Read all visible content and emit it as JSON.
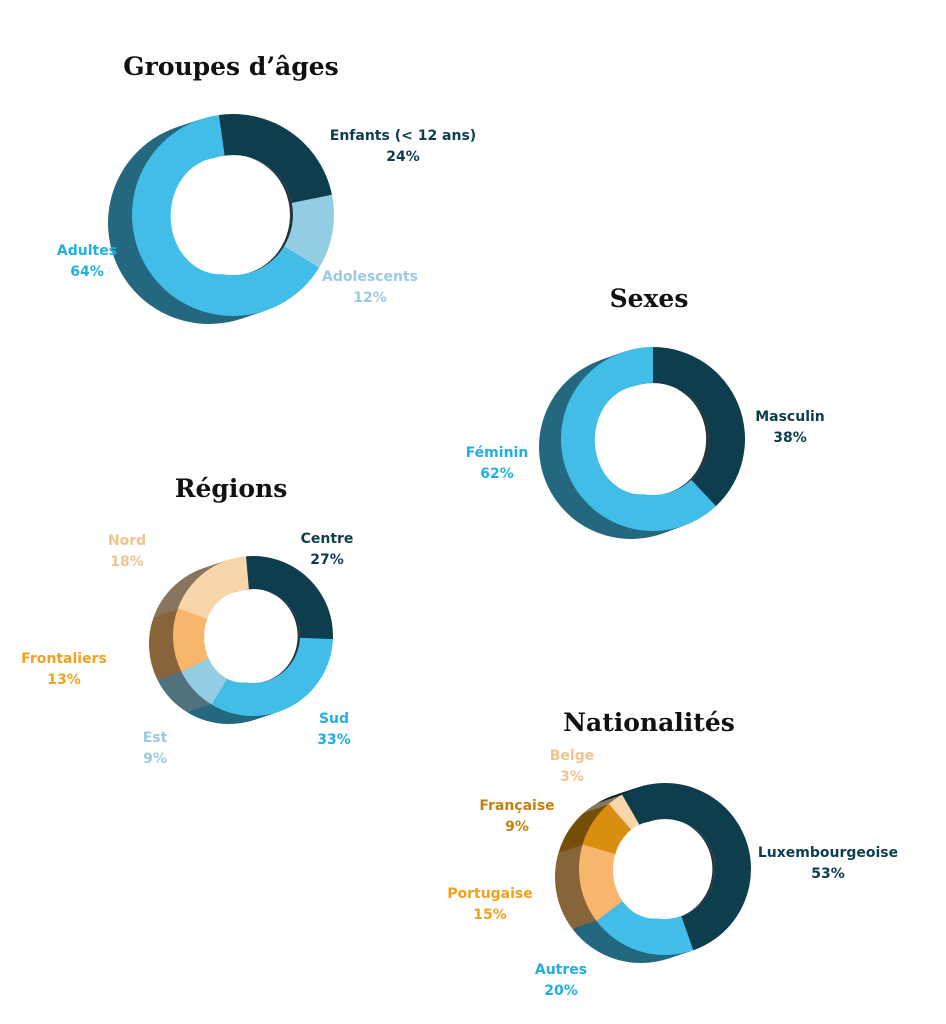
{
  "chart_data": [
    {
      "id": "ages",
      "type": "pie",
      "title": "Groupes d’âges",
      "slices": [
        {
          "label": "Enfants (< 12 ans)",
          "value": 24,
          "display": "24%",
          "color": "#0e3d4d",
          "label_color": "#0e3d4d"
        },
        {
          "label": "Adolescents",
          "value": 12,
          "display": "12%",
          "color": "#93cde4",
          "label_color": "#9ccbe0"
        },
        {
          "label": "Adultes",
          "value": 64,
          "display": "64%",
          "color": "#42bde8",
          "label_color": "#1fb0e0"
        }
      ]
    },
    {
      "id": "sexes",
      "type": "pie",
      "title": "Sexes",
      "slices": [
        {
          "label": "Masculin",
          "value": 38,
          "display": "38%",
          "color": "#0e3d4d",
          "label_color": "#0e3d4d"
        },
        {
          "label": "Féminin",
          "value": 62,
          "display": "62%",
          "color": "#42bde8",
          "label_color": "#1fb0e0"
        }
      ]
    },
    {
      "id": "regions",
      "type": "pie",
      "title": "Régions",
      "slices": [
        {
          "label": "Centre",
          "value": 27,
          "display": "27%",
          "color": "#0e3d4d",
          "label_color": "#0e3d4d"
        },
        {
          "label": "Sud",
          "value": 33,
          "display": "33%",
          "color": "#42bde8",
          "label_color": "#1fb0e0"
        },
        {
          "label": "Est",
          "value": 9,
          "display": "9%",
          "color": "#93cde4",
          "label_color": "#9ccbe0"
        },
        {
          "label": "Frontaliers",
          "value": 13,
          "display": "13%",
          "color": "#f8b56c",
          "label_color": "#f2a21c"
        },
        {
          "label": "Nord",
          "value": 18,
          "display": "18%",
          "color": "#f9d5aa",
          "label_color": "#f0c48f"
        }
      ]
    },
    {
      "id": "nationalites",
      "type": "pie",
      "title": "Nationalités",
      "slices": [
        {
          "label": "Luxembourgeoise",
          "value": 53,
          "display": "53%",
          "color": "#0e3d4d",
          "label_color": "#0e3d4d"
        },
        {
          "label": "Autres",
          "value": 20,
          "display": "20%",
          "color": "#42bde8",
          "label_color": "#1fb0e0"
        },
        {
          "label": "Portugaise",
          "value": 15,
          "display": "15%",
          "color": "#f8b56c",
          "label_color": "#f2a21c"
        },
        {
          "label": "Française",
          "value": 9,
          "display": "9%",
          "color": "#d98e0f",
          "label_color": "#c4820d"
        },
        {
          "label": "Belge",
          "value": 3,
          "display": "3%",
          "color": "#f9d5aa",
          "label_color": "#f0c48f"
        }
      ]
    }
  ]
}
